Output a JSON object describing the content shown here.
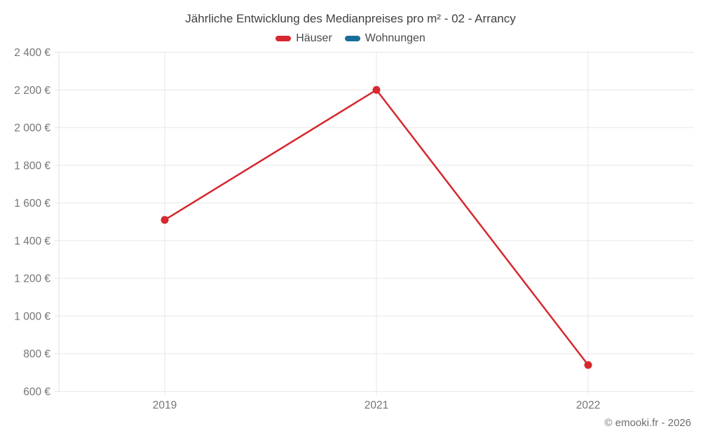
{
  "page": {
    "title": "Jährliche Entwicklung des Medianpreises pro m² - 02 - Arrancy",
    "copyright": "© emooki.fr - 2026"
  },
  "colors": {
    "haeuser": "#d6282f",
    "wohnungen": "#1a6d9b",
    "grid": "#e7e7e7",
    "axis_line": "#e0e0e0",
    "tick_text": "#757575",
    "title_text": "#3f3f3f"
  },
  "chart_data": {
    "type": "line",
    "title": "Jährliche Entwicklung des Medianpreises pro m² - 02 - Arrancy",
    "categories": [
      "2019",
      "2021",
      "2022"
    ],
    "series": [
      {
        "name": "Häuser",
        "color": "#d6282f",
        "values": [
          1510,
          2200,
          740
        ]
      },
      {
        "name": "Wohnungen",
        "color": "#1a6d9b",
        "values": []
      }
    ],
    "ylim": [
      600,
      2400
    ],
    "y_tick_step": 200,
    "y_tick_labels": [
      "2 400 €",
      "2 200 €",
      "2 000 €",
      "1 800 €",
      "1 600 €",
      "1 400 €",
      "1 200 €",
      "1 000 €",
      "800 €",
      "600 €"
    ],
    "xlabel": "",
    "ylabel": "",
    "grid": true,
    "legend_position": "top"
  }
}
